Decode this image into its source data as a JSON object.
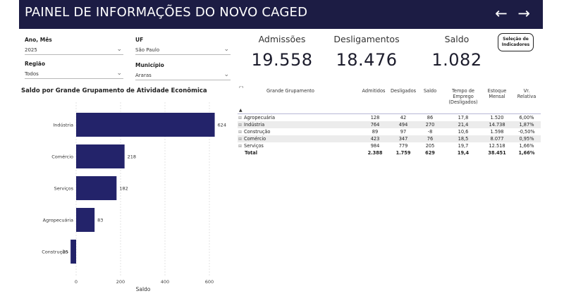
{
  "header": {
    "title": "PAINEL DE INFORMAÇÕES DO NOVO CAGED",
    "back_icon": "←",
    "forward_icon": "→"
  },
  "filters": {
    "ano_mes": {
      "label": "Ano, Mês",
      "value": "2025"
    },
    "uf": {
      "label": "UF",
      "value": "São Paulo"
    },
    "regiao": {
      "label": "Região",
      "value": "Todos"
    },
    "municipio": {
      "label": "Município",
      "value": "Araras"
    }
  },
  "kpis": {
    "admissoes": {
      "label": "Admissões",
      "value": "19.558"
    },
    "desligamentos": {
      "label": "Desligamentos",
      "value": "18.476"
    },
    "saldo": {
      "label": "Saldo",
      "value": "1.082"
    }
  },
  "selection_button": {
    "line1": "Seleção de",
    "line2": "Indicadores"
  },
  "chart_title": "Saldo por Grande Grupamento de Atividade Econômica",
  "chart_data": {
    "type": "bar",
    "orientation": "horizontal",
    "categories": [
      "Indústria",
      "Comércio",
      "Serviços",
      "Agropecuária",
      "Construção"
    ],
    "values": [
      624,
      218,
      182,
      83,
      -25
    ],
    "data_labels": [
      "624",
      "218",
      "182",
      "83",
      "-25"
    ],
    "xlabel": "Saldo",
    "ylabel": "",
    "xticks": [
      "0",
      "200",
      "400",
      "600"
    ],
    "xlim": [
      -30,
      700
    ],
    "grid": true,
    "bar_color": "#23236a"
  },
  "table": {
    "headers": [
      "Grande Grupamento",
      "Admitidos",
      "Desligados",
      "Saldo",
      "Tempo de Emprego (Desligados)",
      "Estoque Mensal",
      "Vr. Relativa"
    ],
    "rows": [
      [
        "Agropecuária",
        "128",
        "42",
        "86",
        "17,8",
        "1.520",
        "6,00%"
      ],
      [
        "Indústria",
        "764",
        "494",
        "270",
        "21,4",
        "14.738",
        "1,87%"
      ],
      [
        "Construção",
        "89",
        "97",
        "-8",
        "10,6",
        "1.598",
        "-0,50%"
      ],
      [
        "Comércio",
        "423",
        "347",
        "76",
        "18,5",
        "8.077",
        "0,95%"
      ],
      [
        "Serviços",
        "984",
        "779",
        "205",
        "19,7",
        "12.518",
        "1,66%"
      ]
    ],
    "total": [
      "Total",
      "2.388",
      "1.759",
      "629",
      "19,4",
      "38.451",
      "1,66%"
    ],
    "expand_icon": "⊞",
    "sort_icon": "▲"
  }
}
